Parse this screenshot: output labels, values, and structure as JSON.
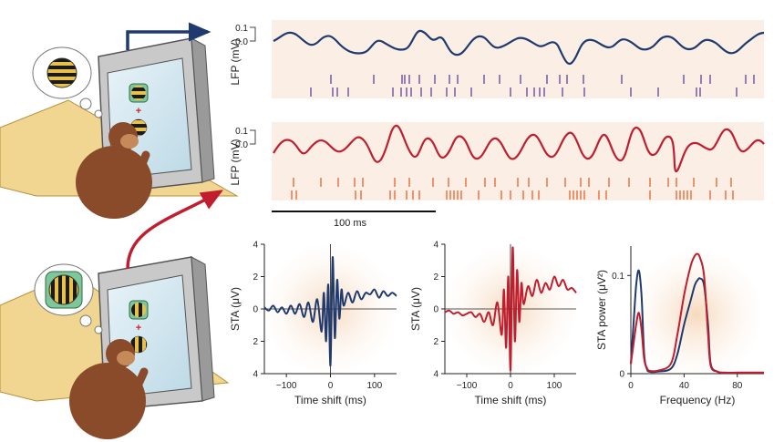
{
  "colors": {
    "attended": "#1f3a6e",
    "unattended": "#c11d2e",
    "spikes_attended": "#6b4fa0",
    "spikes_unattended": "#ee6a3a",
    "trace_background": "#fbeee4"
  },
  "icons": [
    "monkey-observer",
    "computer-monitor",
    "thought-bubble",
    "grating-stimulus"
  ],
  "lfp_panels": [
    {
      "ylabel": "LFP (mV)",
      "ticks": [
        "0.1",
        "0.0"
      ]
    },
    {
      "ylabel": "LFP (mV)",
      "ticks": [
        "0.1",
        "0.0"
      ]
    }
  ],
  "scale_bar": {
    "label": "100 ms",
    "value_ms": 100
  },
  "chart_data": [
    {
      "type": "line",
      "xlabel": "Time shift (ms)",
      "ylabel": "STA  (μV)",
      "xlim": [
        -150,
        150
      ],
      "ylim": [
        -4,
        4
      ],
      "xticks": [
        "−100",
        "0",
        "100"
      ],
      "yticks": [
        "4",
        "2",
        "0",
        "2",
        "4"
      ],
      "series": [
        {
          "color": "#1f3a6e",
          "x": [
            -150,
            -140,
            -130,
            -120,
            -110,
            -100,
            -90,
            -80,
            -70,
            -60,
            -50,
            -40,
            -30,
            -20,
            -15,
            -10,
            -5,
            0,
            5,
            10,
            15,
            20,
            25,
            30,
            40,
            50,
            60,
            70,
            80,
            90,
            100,
            110,
            120,
            130,
            140,
            150
          ],
          "y": [
            0.1,
            -0.1,
            0.2,
            -0.2,
            0.1,
            -0.3,
            0.2,
            -0.3,
            0.3,
            -0.5,
            0.4,
            -0.8,
            0.6,
            -1.4,
            1.0,
            -2.0,
            1.5,
            -3.5,
            3.2,
            -1.8,
            1.8,
            -0.6,
            1.2,
            0.2,
            1.0,
            0.4,
            1.1,
            0.6,
            1.0,
            0.9,
            1.2,
            0.7,
            1.1,
            0.8,
            1.0,
            0.8
          ]
        }
      ]
    },
    {
      "type": "line",
      "xlabel": "Time shift (ms)",
      "ylabel": "STA  (μV)",
      "xlim": [
        -150,
        150
      ],
      "ylim": [
        -4,
        4
      ],
      "xticks": [
        "−100",
        "0",
        "100"
      ],
      "yticks": [
        "4",
        "2",
        "0",
        "2",
        "4"
      ],
      "series": [
        {
          "color": "#c11d2e",
          "x": [
            -150,
            -140,
            -130,
            -120,
            -110,
            -100,
            -90,
            -80,
            -70,
            -60,
            -50,
            -40,
            -30,
            -20,
            -15,
            -10,
            -5,
            0,
            5,
            10,
            15,
            20,
            25,
            30,
            40,
            50,
            60,
            70,
            80,
            90,
            100,
            110,
            120,
            130,
            140,
            150
          ],
          "y": [
            -0.2,
            -0.1,
            -0.3,
            -0.2,
            -0.4,
            -0.3,
            -0.2,
            -0.5,
            -0.3,
            -0.8,
            -0.2,
            -1.0,
            0.4,
            -1.6,
            1.2,
            -2.4,
            2.0,
            -3.8,
            3.8,
            -2.0,
            2.4,
            -0.8,
            1.6,
            0.3,
            1.4,
            0.8,
            1.8,
            1.0,
            1.6,
            1.2,
            2.0,
            1.4,
            1.8,
            1.2,
            1.3,
            1.0
          ]
        }
      ]
    },
    {
      "type": "line",
      "xlabel": "Frequency (Hz)",
      "ylabel": "STA power  (μV²)",
      "xlim": [
        0,
        100
      ],
      "ylim": [
        0,
        0.13
      ],
      "xticks": [
        "0",
        "40",
        "80"
      ],
      "xtick_values": [
        0,
        40,
        80
      ],
      "yticks": [
        "0.1",
        "0"
      ],
      "ytick_values": [
        0.1,
        0
      ],
      "series": [
        {
          "color": "#1f3a6e",
          "x": [
            0,
            2,
            4,
            6,
            8,
            10,
            12,
            14,
            20,
            30,
            35,
            40,
            45,
            48,
            50,
            52,
            55,
            58,
            60,
            65,
            70,
            80,
            90,
            100
          ],
          "y": [
            0.01,
            0.05,
            0.09,
            0.105,
            0.08,
            0.02,
            0.005,
            0.002,
            0.002,
            0.005,
            0.02,
            0.05,
            0.075,
            0.09,
            0.095,
            0.097,
            0.09,
            0.05,
            0.01,
            0.002,
            0.001,
            0.001,
            0.001,
            0.001
          ]
        },
        {
          "color": "#c11d2e",
          "x": [
            0,
            2,
            4,
            6,
            8,
            10,
            12,
            14,
            20,
            30,
            35,
            40,
            45,
            48,
            50,
            52,
            55,
            58,
            60,
            65,
            70,
            80,
            90,
            100
          ],
          "y": [
            0.01,
            0.03,
            0.05,
            0.062,
            0.045,
            0.015,
            0.006,
            0.003,
            0.003,
            0.01,
            0.04,
            0.08,
            0.11,
            0.12,
            0.122,
            0.118,
            0.1,
            0.04,
            0.008,
            0.002,
            0.001,
            0.001,
            0.001,
            0.001
          ]
        }
      ]
    }
  ]
}
